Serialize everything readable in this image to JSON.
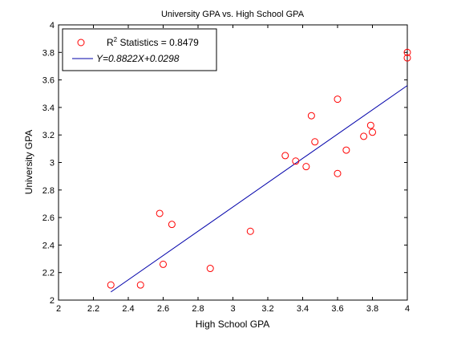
{
  "chart_data": {
    "type": "scatter",
    "title": "University GPA vs. High School GPA",
    "xlabel": "High School GPA",
    "ylabel": "University GPA",
    "xlim": [
      2,
      4
    ],
    "ylim": [
      2,
      4
    ],
    "xticks": [
      2,
      2.2,
      2.4,
      2.6,
      2.8,
      3,
      3.2,
      3.4,
      3.6,
      3.8,
      4
    ],
    "yticks": [
      2,
      2.2,
      2.4,
      2.6,
      2.8,
      3,
      3.2,
      3.4,
      3.6,
      3.8,
      4
    ],
    "xtick_labels": [
      "2",
      "2.2",
      "2.4",
      "2.6",
      "2.8",
      "3",
      "3.2",
      "3.4",
      "3.6",
      "3.8",
      "4"
    ],
    "ytick_labels": [
      "2",
      "2.2",
      "2.4",
      "2.6",
      "2.8",
      "3",
      "3.2",
      "3.4",
      "3.6",
      "3.8",
      "4"
    ],
    "grid": false,
    "legend_position": "top-left",
    "series": [
      {
        "name": "R2 Statistics = 0.8479",
        "marker": "circle",
        "color": "#ff0000",
        "x": [
          2.3,
          2.47,
          2.58,
          2.6,
          2.65,
          2.87,
          3.1,
          3.3,
          3.36,
          3.42,
          3.45,
          3.47,
          3.6,
          3.6,
          3.65,
          3.75,
          3.79,
          3.8,
          4.0,
          4.0
        ],
        "y": [
          2.11,
          2.11,
          2.63,
          2.26,
          2.55,
          2.23,
          2.5,
          3.05,
          3.01,
          2.97,
          3.34,
          3.15,
          3.46,
          2.92,
          3.09,
          3.19,
          3.27,
          3.22,
          3.8,
          3.76
        ]
      },
      {
        "name": "Y=0.8822X+0.0298",
        "type": "line",
        "color": "#0000aa",
        "slope": 0.8822,
        "intercept": 0.0298,
        "x": [
          2.3,
          4.0
        ],
        "y": [
          2.059,
          3.559
        ]
      }
    ]
  },
  "legend": {
    "r2_prefix": "R",
    "r2_sup": "2",
    "r2_rest": " Statistics = 0.8479",
    "fit_label": "Y=0.8822X+0.0298"
  }
}
